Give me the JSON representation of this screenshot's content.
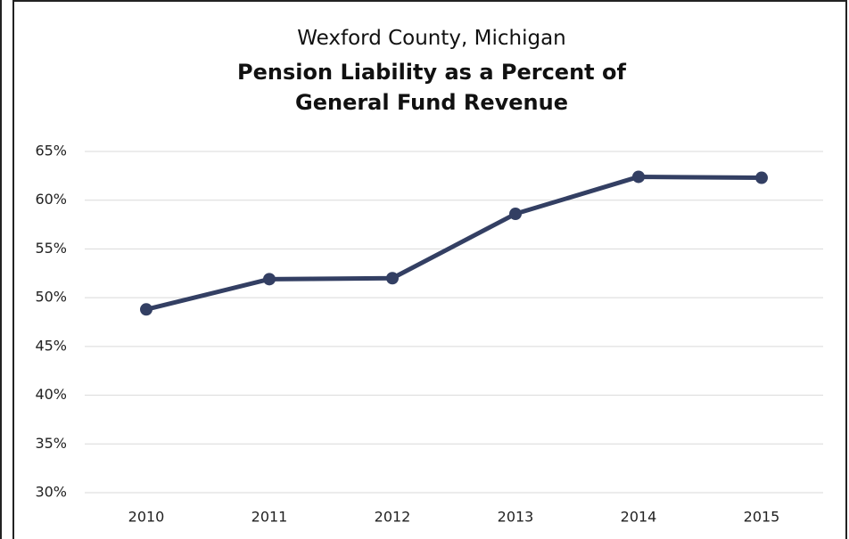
{
  "chart_data": {
    "type": "line",
    "subtitle": "Wexford County, Michigan",
    "title": "Pension Liability as a Percent of General Fund Revenue",
    "categories": [
      "2010",
      "2011",
      "2012",
      "2013",
      "2014",
      "2015"
    ],
    "series": [
      {
        "name": "Pension Liability as a Percent of General Fund Revenue",
        "color": "#333f63",
        "values": [
          48.8,
          51.9,
          52.0,
          58.6,
          62.4,
          62.3
        ]
      }
    ],
    "ylim": [
      30,
      65
    ],
    "yticks": [
      {
        "value": 30,
        "label": "30%"
      },
      {
        "value": 35,
        "label": "35%"
      },
      {
        "value": 40,
        "label": "40%"
      },
      {
        "value": 45,
        "label": "45%"
      },
      {
        "value": 50,
        "label": "50%"
      },
      {
        "value": 55,
        "label": "55%"
      },
      {
        "value": 60,
        "label": "60%"
      },
      {
        "value": 65,
        "label": "65%"
      }
    ],
    "grid": true
  }
}
